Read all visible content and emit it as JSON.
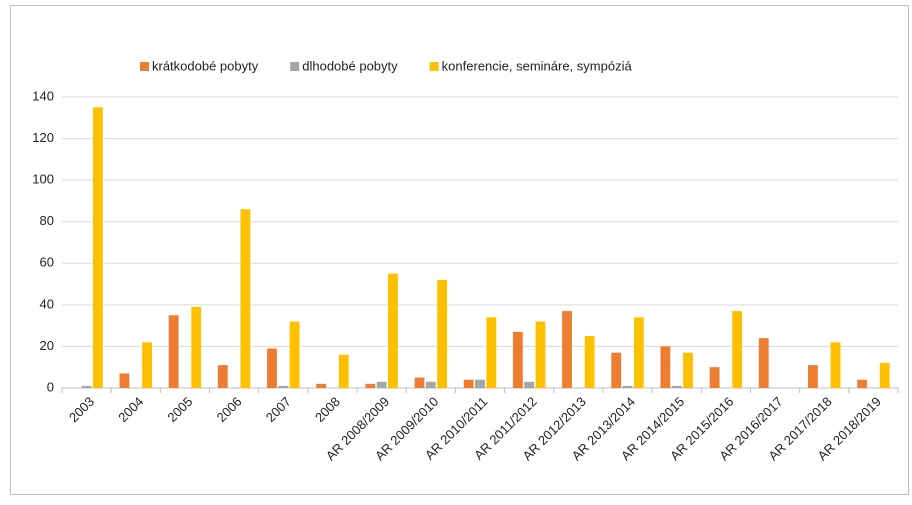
{
  "chart_data": {
    "type": "bar",
    "categories": [
      "2003",
      "2004",
      "2005",
      "2006",
      "2007",
      "2008",
      "AR 2008/2009",
      "AR 2009/2010",
      "AR 2010/2011",
      "AR 2011/2012",
      "AR 2012/2013",
      "AR 2013/2014",
      "AR 2014/2015",
      "AR 2015/2016",
      "AR 2016/2017",
      "AR 2017/2018",
      "AR 2018/2019"
    ],
    "series": [
      {
        "name": "krátkodobé pobyty",
        "color": "#ed7d31",
        "values": [
          0,
          7,
          35,
          11,
          19,
          2,
          2,
          5,
          4,
          27,
          37,
          17,
          20,
          10,
          24,
          11,
          4
        ]
      },
      {
        "name": "dlhodobé pobyty",
        "color": "#a5a5a5",
        "values": [
          1,
          0,
          0,
          0,
          1,
          0,
          3,
          3,
          4,
          3,
          0,
          1,
          1,
          0,
          0,
          0,
          0
        ]
      },
      {
        "name": "konferencie, semináre, sympóziá",
        "color": "#ffc000",
        "values": [
          135,
          22,
          39,
          86,
          32,
          16,
          55,
          52,
          34,
          32,
          25,
          34,
          17,
          37,
          0,
          22,
          12
        ]
      }
    ],
    "ylim": [
      0,
      140
    ],
    "yticks": [
      0,
      20,
      40,
      60,
      80,
      100,
      120,
      140
    ],
    "grid": true,
    "legend": "top"
  }
}
